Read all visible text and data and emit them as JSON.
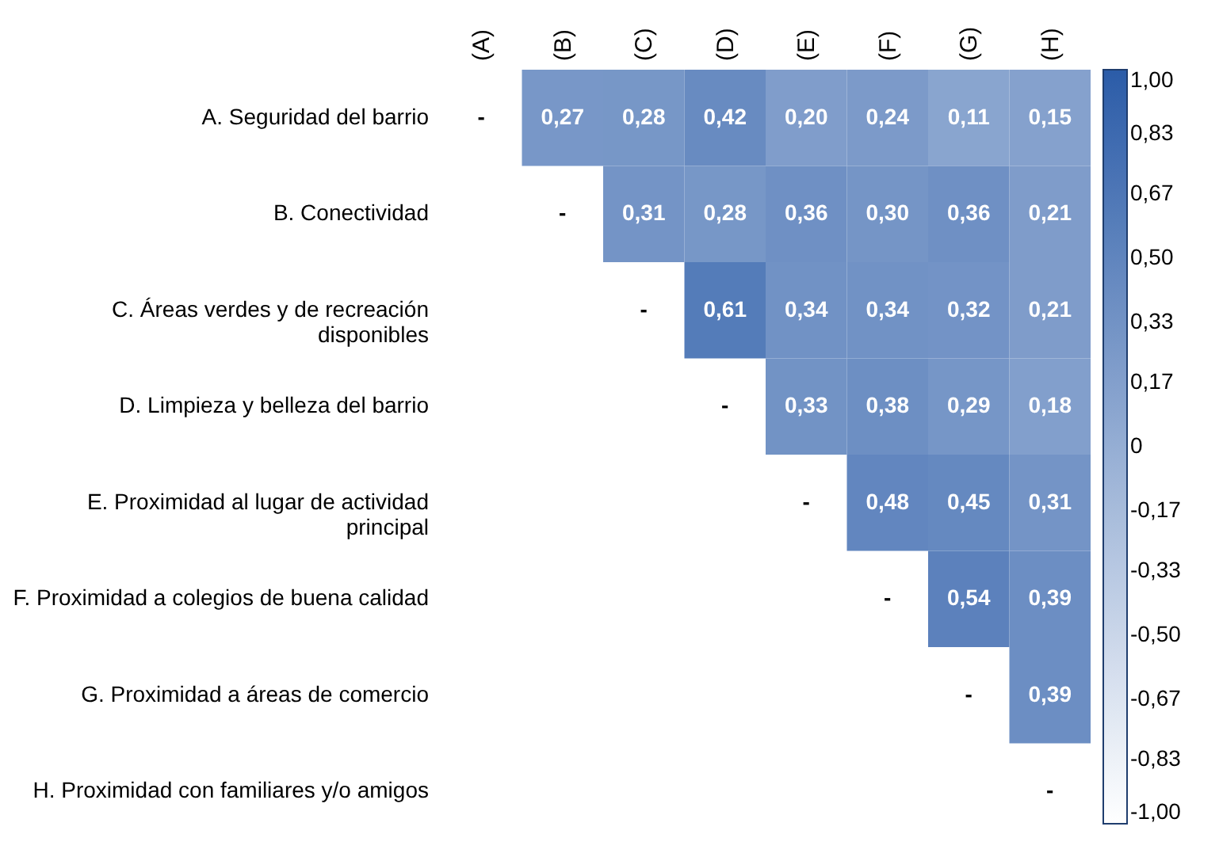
{
  "chart_data": {
    "type": "heatmap",
    "categories": [
      "(A)",
      "(B)",
      "(C)",
      "(D)",
      "(E)",
      "(F)",
      "(G)",
      "(H)"
    ],
    "y_categories": [
      "A. Seguridad del barrio",
      "B. Conectividad",
      "C. Áreas verdes y de recreación disponibles",
      "D. Limpieza y belleza del barrio",
      "E. Proximidad al lugar de actividad principal",
      "F. Proximidad a colegios de buena calidad",
      "G. Proximidad a áreas de comercio",
      "H. Proximidad con familiares y/o amigos"
    ],
    "cells": [
      [
        null,
        0.27,
        0.28,
        0.42,
        0.2,
        0.24,
        0.11,
        0.15
      ],
      [
        null,
        null,
        0.31,
        0.28,
        0.36,
        0.3,
        0.36,
        0.21
      ],
      [
        null,
        null,
        null,
        0.61,
        0.34,
        0.34,
        0.32,
        0.21
      ],
      [
        null,
        null,
        null,
        null,
        0.33,
        0.38,
        0.29,
        0.18
      ],
      [
        null,
        null,
        null,
        null,
        null,
        0.48,
        0.45,
        0.31
      ],
      [
        null,
        null,
        null,
        null,
        null,
        null,
        0.54,
        0.39
      ],
      [
        null,
        null,
        null,
        null,
        null,
        null,
        null,
        0.39
      ],
      [
        null,
        null,
        null,
        null,
        null,
        null,
        null,
        null
      ]
    ],
    "cell_labels": [
      [
        "-",
        "0,27",
        "0,28",
        "0,42",
        "0,20",
        "0,24",
        "0,11",
        "0,15"
      ],
      [
        null,
        "-",
        "0,31",
        "0,28",
        "0,36",
        "0,30",
        "0,36",
        "0,21"
      ],
      [
        null,
        null,
        "-",
        "0,61",
        "0,34",
        "0,34",
        "0,32",
        "0,21"
      ],
      [
        null,
        null,
        null,
        "-",
        "0,33",
        "0,38",
        "0,29",
        "0,18"
      ],
      [
        null,
        null,
        null,
        null,
        "-",
        "0,48",
        "0,45",
        "0,31"
      ],
      [
        null,
        null,
        null,
        null,
        null,
        "-",
        "0,54",
        "0,39"
      ],
      [
        null,
        null,
        null,
        null,
        null,
        null,
        "-",
        "0,39"
      ],
      [
        null,
        null,
        null,
        null,
        null,
        null,
        null,
        "-"
      ]
    ],
    "clim": [
      -1,
      1
    ],
    "cticks": [
      {
        "value": 1,
        "label": "1,00"
      },
      {
        "value": 0.83,
        "label": "0,83"
      },
      {
        "value": 0.67,
        "label": "0,67"
      },
      {
        "value": 0.5,
        "label": "0,50"
      },
      {
        "value": 0.33,
        "label": "0,33"
      },
      {
        "value": 0.17,
        "label": "0,17"
      },
      0,
      {
        "value": -0.17,
        "label": "-0,17"
      },
      {
        "value": -0.33,
        "label": "-0,33"
      },
      {
        "value": -0.5,
        "label": "-0,50"
      },
      {
        "value": -0.67,
        "label": "-0,67"
      },
      {
        "value": -0.83,
        "label": "-0,83"
      },
      {
        "value": -1,
        "label": "-1,00"
      }
    ]
  }
}
